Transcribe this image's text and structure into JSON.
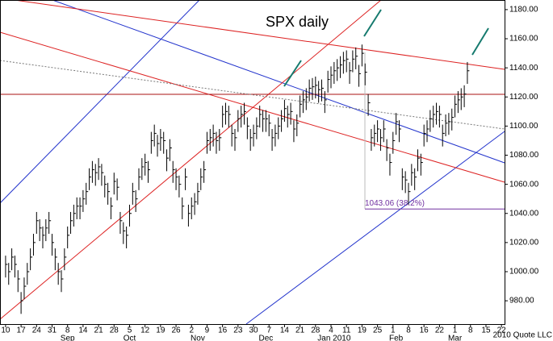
{
  "chart_data": {
    "type": "ohlc",
    "title": "SPX daily",
    "credit": "2010 Quote LLC",
    "high": [
      1011,
      1006,
      1016,
      1011,
      1001,
      986,
      996,
      1006,
      1016,
      1026,
      1041,
      1036,
      1031,
      1036,
      1041,
      1026,
      1016,
      1006,
      1001,
      1016,
      1031,
      1041,
      1046,
      1051,
      1051,
      1056,
      1061,
      1071,
      1076,
      1074,
      1078,
      1074,
      1066,
      1061,
      1051,
      1068,
      1064,
      1041,
      1034,
      1031,
      1046,
      1061,
      1056,
      1071,
      1078,
      1081,
      1076,
      1096,
      1101,
      1094,
      1098,
      1096,
      1084,
      1091,
      1076,
      1071,
      1066,
      1051,
      1071,
      1046,
      1051,
      1054,
      1061,
      1071,
      1076,
      1096,
      1098,
      1101,
      1096,
      1098,
      1114,
      1116,
      1114,
      1101,
      1098,
      1111,
      1114,
      1116,
      1106,
      1098,
      1101,
      1106,
      1114,
      1111,
      1111,
      1108,
      1098,
      1101,
      1106,
      1111,
      1118,
      1114,
      1116,
      1104,
      1108,
      1121,
      1124,
      1126,
      1132,
      1133,
      1134,
      1131,
      1132,
      1124,
      1138,
      1141,
      1144,
      1146,
      1148,
      1151,
      1152,
      1144,
      1152,
      1154,
      1142,
      1156,
      1143,
      1122,
      1098,
      1101,
      1104,
      1098,
      1104,
      1091,
      1081,
      1096,
      1109,
      1104,
      1071,
      1069,
      1061,
      1074,
      1071,
      1084,
      1081,
      1101,
      1104,
      1111,
      1114,
      1116,
      1114,
      1101,
      1108,
      1109,
      1112,
      1121,
      1124,
      1126,
      1128,
      1144
    ],
    "low": [
      996,
      991,
      1001,
      996,
      986,
      971,
      981,
      991,
      1001,
      1011,
      1026,
      1021,
      1016,
      1021,
      1026,
      1011,
      1001,
      991,
      986,
      1001,
      1016,
      1026,
      1031,
      1036,
      1036,
      1041,
      1046,
      1056,
      1061,
      1059,
      1063,
      1059,
      1051,
      1046,
      1036,
      1053,
      1049,
      1026,
      1019,
      1016,
      1031,
      1046,
      1041,
      1056,
      1063,
      1066,
      1061,
      1081,
      1086,
      1079,
      1083,
      1081,
      1069,
      1076,
      1061,
      1056,
      1051,
      1036,
      1056,
      1031,
      1036,
      1039,
      1046,
      1056,
      1061,
      1081,
      1083,
      1086,
      1081,
      1083,
      1099,
      1101,
      1099,
      1086,
      1083,
      1096,
      1099,
      1101,
      1091,
      1083,
      1086,
      1091,
      1099,
      1096,
      1096,
      1093,
      1083,
      1086,
      1091,
      1096,
      1103,
      1099,
      1101,
      1089,
      1093,
      1106,
      1109,
      1111,
      1117,
      1118,
      1119,
      1116,
      1117,
      1109,
      1123,
      1126,
      1129,
      1131,
      1133,
      1136,
      1137,
      1129,
      1137,
      1139,
      1127,
      1141,
      1128,
      1107,
      1083,
      1086,
      1089,
      1083,
      1089,
      1076,
      1066,
      1081,
      1094,
      1089,
      1056,
      1054,
      1046,
      1059,
      1056,
      1069,
      1066,
      1086,
      1089,
      1096,
      1099,
      1101,
      1099,
      1086,
      1093,
      1094,
      1097,
      1106,
      1109,
      1111,
      1113,
      1129
    ],
    "close": [
      1005,
      1000,
      1010,
      1005,
      995,
      980,
      990,
      1000,
      1010,
      1020,
      1035,
      1030,
      1025,
      1030,
      1035,
      1020,
      1010,
      1000,
      995,
      1010,
      1025,
      1035,
      1040,
      1045,
      1045,
      1050,
      1055,
      1065,
      1070,
      1068,
      1072,
      1068,
      1060,
      1055,
      1045,
      1062,
      1058,
      1035,
      1028,
      1025,
      1040,
      1055,
      1050,
      1065,
      1072,
      1075,
      1070,
      1090,
      1095,
      1088,
      1092,
      1090,
      1078,
      1085,
      1070,
      1065,
      1060,
      1045,
      1065,
      1040,
      1045,
      1048,
      1055,
      1065,
      1070,
      1090,
      1092,
      1095,
      1090,
      1092,
      1108,
      1110,
      1108,
      1095,
      1092,
      1105,
      1108,
      1110,
      1100,
      1092,
      1095,
      1100,
      1108,
      1105,
      1105,
      1102,
      1092,
      1095,
      1100,
      1105,
      1112,
      1108,
      1110,
      1098,
      1102,
      1115,
      1118,
      1120,
      1126,
      1127,
      1128,
      1125,
      1126,
      1118,
      1132,
      1135,
      1138,
      1140,
      1142,
      1145,
      1146,
      1138,
      1146,
      1148,
      1136,
      1150,
      1137,
      1116,
      1092,
      1095,
      1098,
      1092,
      1098,
      1085,
      1075,
      1090,
      1103,
      1098,
      1065,
      1063,
      1055,
      1068,
      1065,
      1078,
      1075,
      1095,
      1098,
      1105,
      1108,
      1110,
      1108,
      1095,
      1102,
      1103,
      1106,
      1115,
      1118,
      1120,
      1122,
      1138
    ],
    "annotation": {
      "value": 1043.06,
      "label": "1043.06 (38.2%)"
    },
    "xlim": [
      -1.8,
      161
    ],
    "xticks": [
      {
        "value": 0,
        "label": "10"
      },
      {
        "value": 5,
        "label": "17"
      },
      {
        "value": 10,
        "label": "24"
      },
      {
        "value": 15,
        "label": "31"
      },
      {
        "value": 20,
        "label": "8"
      },
      {
        "value": 25,
        "label": "14"
      },
      {
        "value": 30,
        "label": "21"
      },
      {
        "value": 35,
        "label": "28"
      },
      {
        "value": 40,
        "label": "5"
      },
      {
        "value": 45,
        "label": "12"
      },
      {
        "value": 50,
        "label": "19"
      },
      {
        "value": 55,
        "label": "26"
      },
      {
        "value": 60,
        "label": "2"
      },
      {
        "value": 65,
        "label": "9"
      },
      {
        "value": 70,
        "label": "16"
      },
      {
        "value": 75,
        "label": "23"
      },
      {
        "value": 80,
        "label": "30"
      },
      {
        "value": 85,
        "label": "7"
      },
      {
        "value": 90,
        "label": "14"
      },
      {
        "value": 95,
        "label": "21"
      },
      {
        "value": 100,
        "label": "28"
      },
      {
        "value": 105,
        "label": "4"
      },
      {
        "value": 110,
        "label": "11"
      },
      {
        "value": 115,
        "label": "19"
      },
      {
        "value": 120,
        "label": "25"
      },
      {
        "value": 125,
        "label": "1"
      },
      {
        "value": 130,
        "label": "8"
      },
      {
        "value": 135,
        "label": "16"
      },
      {
        "value": 140,
        "label": "22"
      },
      {
        "value": 145,
        "label": "1"
      },
      {
        "value": 150,
        "label": "8"
      },
      {
        "value": 155,
        "label": "15"
      },
      {
        "value": 160,
        "label": "22"
      }
    ],
    "xmonths": [
      {
        "value": 20,
        "label": "Sep"
      },
      {
        "value": 40,
        "label": "Oct"
      },
      {
        "value": 62,
        "label": "Nov"
      },
      {
        "value": 84,
        "label": "Dec"
      },
      {
        "value": 106,
        "label": "Jan 2010"
      },
      {
        "value": 126,
        "label": "Feb"
      },
      {
        "value": 145,
        "label": "Mar"
      }
    ],
    "ylim": [
      964,
      1186.6
    ],
    "yticks": [
      {
        "value": 980,
        "label": "980.00"
      },
      {
        "value": 1000,
        "label": "1000.00"
      },
      {
        "value": 1020,
        "label": "1020.00"
      },
      {
        "value": 1040,
        "label": "1040.00"
      },
      {
        "value": 1060,
        "label": "1060.00"
      },
      {
        "value": 1080,
        "label": "1080.00"
      },
      {
        "value": 1100,
        "label": "1100.00"
      },
      {
        "value": 1120,
        "label": "1120.00"
      },
      {
        "value": 1140,
        "label": "1140.00"
      },
      {
        "value": 1160,
        "label": "1160.00"
      },
      {
        "value": 1180,
        "label": "1180.00"
      }
    ],
    "color": "#000000",
    "annotation_color": "#7030a0"
  }
}
